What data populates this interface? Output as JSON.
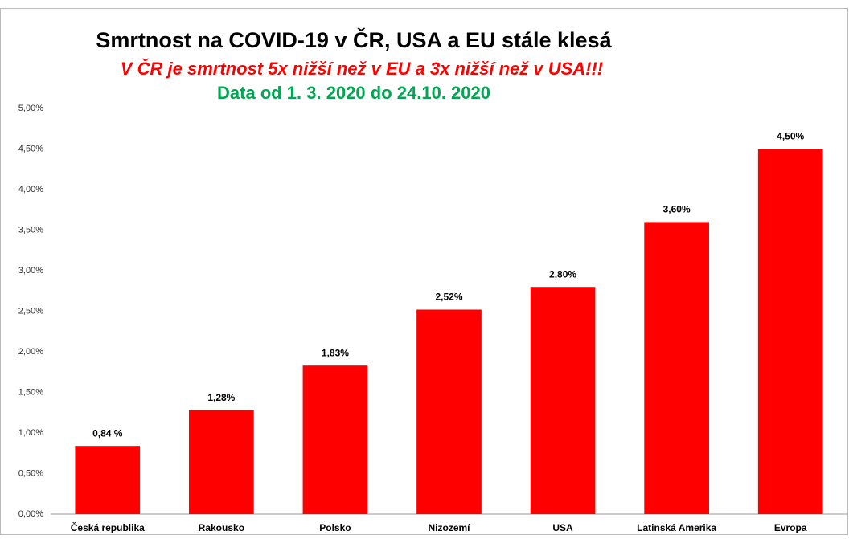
{
  "chart_data": {
    "type": "bar",
    "title": "Smrtnost na COVID-19 v ČR, USA a EU stále klesá",
    "subtitle": "V ČR je smrtnost 5x nižší než v EU a 3x nižší než v USA!!!",
    "subtitle2": "Data od 1. 3. 2020 do 24.10. 2020",
    "categories": [
      "Česká republika",
      "Rakousko",
      "Polsko",
      "Nizozemí",
      "USA",
      "Latinská Amerika",
      "Evropa"
    ],
    "values": [
      0.84,
      1.28,
      1.83,
      2.52,
      2.8,
      3.6,
      4.5
    ],
    "value_labels": [
      "0,84 %",
      "1,28%",
      "1,83%",
      "2,52%",
      "2,80%",
      "3,60%",
      "4,50%"
    ],
    "color": "#ff0000",
    "ylim": [
      0,
      5
    ],
    "yticks": [
      {
        "value": 0,
        "label": "0,00%"
      },
      {
        "value": 0.5,
        "label": "0,50%"
      },
      {
        "value": 1,
        "label": "1,00%"
      },
      {
        "value": 1.5,
        "label": "1,50%"
      },
      {
        "value": 2,
        "label": "2,00%"
      },
      {
        "value": 2.5,
        "label": "2,50%"
      },
      {
        "value": 3,
        "label": "3,00%"
      },
      {
        "value": 3.5,
        "label": "3,50%"
      },
      {
        "value": 4,
        "label": "4,00%"
      },
      {
        "value": 4.5,
        "label": "4,50%"
      },
      {
        "value": 5,
        "label": "5,00%"
      }
    ],
    "grid": false
  }
}
